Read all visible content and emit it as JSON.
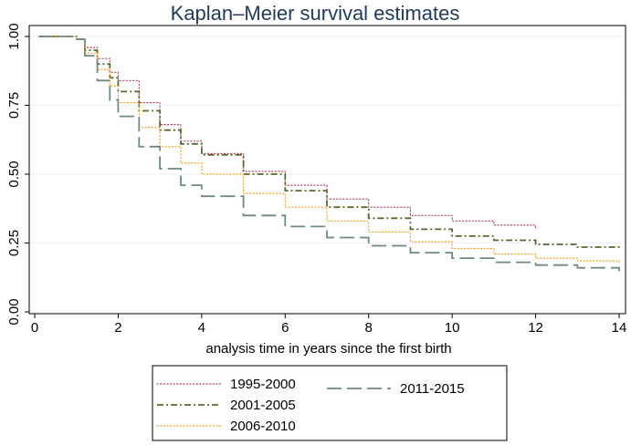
{
  "chart_data": {
    "type": "line",
    "title": "Kaplan–Meier survival estimates",
    "xlabel": "analysis time in years since the first birth",
    "ylabel": "",
    "xlim": [
      0,
      14
    ],
    "ylim": [
      0,
      1
    ],
    "xticks": [
      0,
      2,
      4,
      6,
      8,
      10,
      12,
      14
    ],
    "yticks": [
      0,
      0.25,
      0.5,
      0.75,
      1
    ],
    "ytick_labels": [
      "0.00",
      "0.25",
      "0.50",
      "0.75",
      "1.00"
    ],
    "grid": true,
    "legend_position": "bottom",
    "series": [
      {
        "name": "1995-2000",
        "color": "#b5485d",
        "dash": "dotted",
        "x": [
          0.1,
          0.8,
          1.0,
          1.2,
          1.5,
          1.8,
          2.0,
          2.5,
          3.0,
          3.5,
          4.0,
          5.0,
          6.0,
          7.0,
          8.0,
          9.0,
          10.0,
          11.0,
          12.0
        ],
        "y": [
          1.0,
          1.0,
          0.99,
          0.96,
          0.92,
          0.87,
          0.84,
          0.76,
          0.68,
          0.62,
          0.575,
          0.51,
          0.46,
          0.41,
          0.38,
          0.35,
          0.33,
          0.315,
          0.305
        ]
      },
      {
        "name": "2001-2005",
        "color": "#556b2f",
        "dash": "dashdot",
        "x": [
          0.1,
          0.8,
          1.0,
          1.2,
          1.5,
          1.8,
          2.0,
          2.5,
          3.0,
          3.5,
          4.0,
          5.0,
          6.0,
          7.0,
          8.0,
          9.0,
          10.0,
          11.0,
          12.0,
          13.0,
          14.0
        ],
        "y": [
          1.0,
          1.0,
          0.99,
          0.95,
          0.9,
          0.85,
          0.8,
          0.73,
          0.66,
          0.61,
          0.57,
          0.5,
          0.44,
          0.38,
          0.34,
          0.3,
          0.275,
          0.26,
          0.245,
          0.235,
          0.225
        ]
      },
      {
        "name": "2006-2010",
        "color": "#f5a623",
        "dash": "dotted",
        "x": [
          0.1,
          0.8,
          1.0,
          1.2,
          1.5,
          1.8,
          2.0,
          2.5,
          3.0,
          3.5,
          4.0,
          5.0,
          6.0,
          7.0,
          8.0,
          9.0,
          10.0,
          11.0,
          12.0,
          13.0,
          14.0
        ],
        "y": [
          1.0,
          1.0,
          0.99,
          0.94,
          0.88,
          0.82,
          0.76,
          0.67,
          0.6,
          0.54,
          0.5,
          0.43,
          0.38,
          0.33,
          0.29,
          0.255,
          0.23,
          0.21,
          0.195,
          0.185,
          0.175
        ]
      },
      {
        "name": "2011-2015",
        "color": "#6e8b7e",
        "dash": "longdash",
        "x": [
          0.1,
          0.8,
          1.0,
          1.2,
          1.5,
          1.8,
          2.0,
          2.5,
          3.0,
          3.5,
          4.0,
          5.0,
          6.0,
          7.0,
          8.0,
          9.0,
          10.0,
          11.0,
          12.0,
          13.0,
          14.0
        ],
        "y": [
          1.0,
          1.0,
          0.99,
          0.93,
          0.84,
          0.77,
          0.71,
          0.6,
          0.52,
          0.46,
          0.42,
          0.35,
          0.31,
          0.27,
          0.24,
          0.215,
          0.195,
          0.18,
          0.17,
          0.16,
          0.148
        ]
      }
    ]
  }
}
